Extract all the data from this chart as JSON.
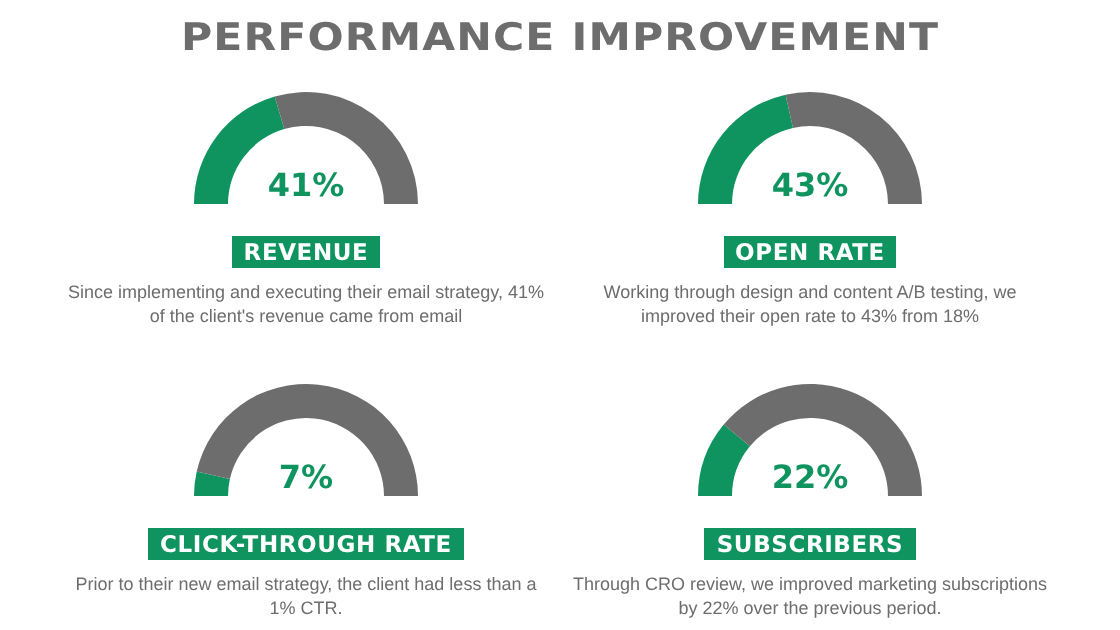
{
  "chart_data": [
    {
      "type": "donut",
      "title": "PERFORMANCE IMPROVEMENT",
      "subtitle": "REVENUE",
      "categories": [
        null,
        null
      ],
      "values": [
        41,
        59
      ],
      "colors": [
        "#0f9460",
        "#6d6d6d"
      ],
      "annotations": [
        "41%",
        "Since implementing and executing their email strategy, 41% of the client's revenue came from email"
      ]
    },
    {
      "type": "donut",
      "subtitle": "OPEN RATE",
      "categories": [
        null,
        null
      ],
      "values": [
        43,
        57
      ],
      "colors": [
        "#0f9460",
        "#6d6d6d"
      ],
      "annotations": [
        "43%",
        "Working through design and content A/B testing, we improved their open rate to 43% from 18%"
      ]
    },
    {
      "type": "donut",
      "subtitle": "CLICK-THROUGH RATE",
      "categories": [
        null,
        null
      ],
      "values": [
        7,
        93
      ],
      "colors": [
        "#0f9460",
        "#6d6d6d"
      ],
      "annotations": [
        "7%",
        "Prior to their new email strategy, the client had less than a 1% CTR."
      ]
    },
    {
      "type": "donut",
      "subtitle": "SUBSCRIBERS",
      "categories": [
        null,
        null
      ],
      "values": [
        22,
        78
      ],
      "colors": [
        "#0f9460",
        "#6d6d6d"
      ],
      "annotations": [
        "22%",
        "Through CRO review, we improved marketing subscriptions by 22% over the previous period."
      ]
    }
  ]
}
